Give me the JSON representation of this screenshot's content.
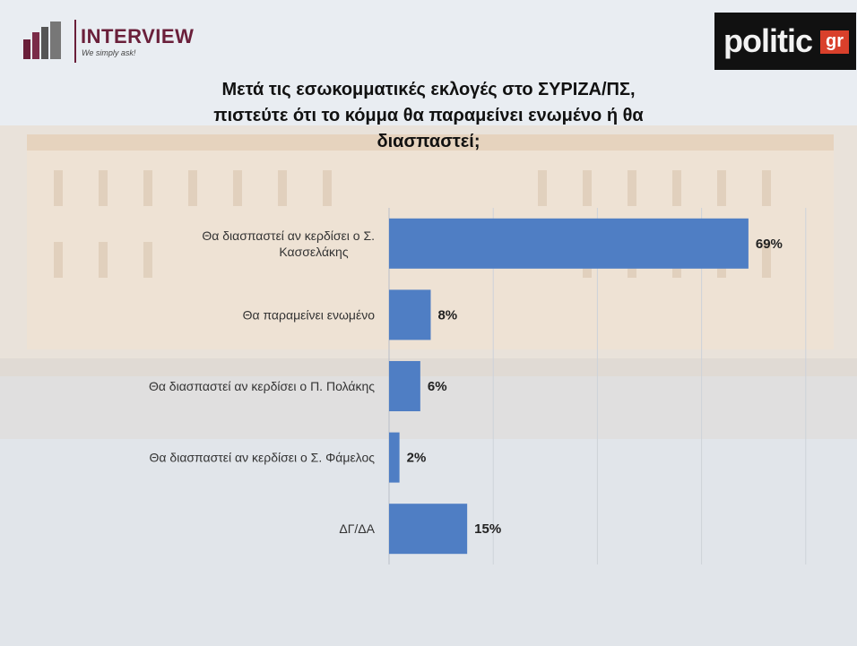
{
  "header": {
    "interview_name": "INTERVIEW",
    "interview_tagline": "We simply ask!",
    "politic_word": "politic",
    "politic_suffix": "gr"
  },
  "colors": {
    "bar": "#4f7ec4",
    "interview": "#6a1f3a",
    "politic_accent": "#d9402b"
  },
  "chart_data": {
    "type": "bar",
    "orientation": "horizontal",
    "title": "Μετά τις εσωκομματικές εκλογές στο ΣΥΡΙΖΑ/ΠΣ, πιστεύτε ότι το κόμμα θα παραμείνει ενωμένο ή θα διασπαστεί;",
    "categories": [
      "Θα διασπαστεί αν κερδίσει ο Σ. Κασσελάκης",
      "Θα παραμείνει ενωμένο",
      "Θα διασπαστεί αν κερδίσει ο Π. Πολάκης",
      "Θα διασπαστεί αν κερδίσει ο Σ. Φάμελος",
      "ΔΓ/ΔΑ"
    ],
    "values": [
      69,
      8,
      6,
      2,
      15
    ],
    "value_labels": [
      "69%",
      "8%",
      "6%",
      "2%",
      "15%"
    ],
    "xlim": [
      0,
      100
    ],
    "grid": true,
    "legend": "none"
  }
}
